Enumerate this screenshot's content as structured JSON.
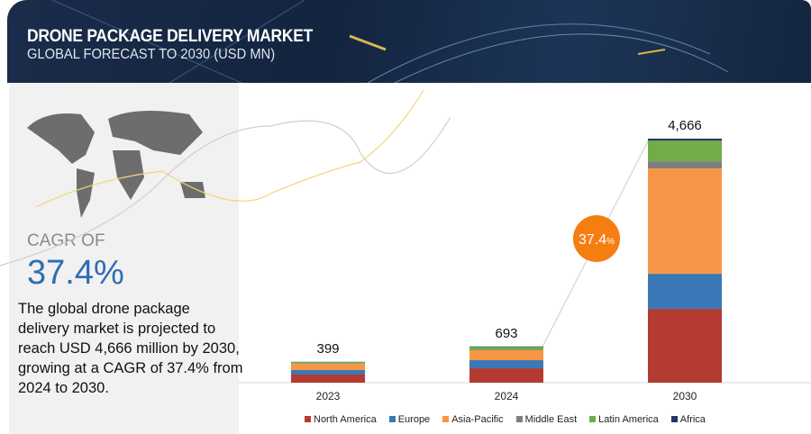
{
  "header": {
    "title": "DRONE PACKAGE DELIVERY MARKET",
    "subtitle": "GLOBAL FORECAST TO 2030 (USD MN)"
  },
  "left": {
    "cagr_label": "CAGR OF",
    "cagr_value": "37.4%",
    "description": "The global drone package delivery market is projected to reach  USD 4,666 million by 2030, growing at a CAGR of 37.4% from 2024 to 2030."
  },
  "chart_data": {
    "type": "bar",
    "stacked": true,
    "title": "Drone Package Delivery Market, Global Forecast to 2030 (USD MN)",
    "categories": [
      "2023",
      "2024",
      "2030"
    ],
    "totals": [
      "399",
      "693",
      "4,666"
    ],
    "total_values": [
      399,
      693,
      4666
    ],
    "cagr_badge": "37.4",
    "cagr_badge_unit": "%",
    "legend_position": "bottom",
    "series": [
      {
        "name": "North America",
        "color": "#b33b32",
        "values": [
          155,
          275,
          1411
        ]
      },
      {
        "name": "Europe",
        "color": "#3b78b7",
        "values": [
          86,
          155,
          671
        ]
      },
      {
        "name": "Asia-Pacific",
        "color": "#f79646",
        "values": [
          120,
          190,
          2013
        ]
      },
      {
        "name": "Middle East",
        "color": "#7f7f7f",
        "values": [
          5,
          8,
          138
        ]
      },
      {
        "name": "Latin America",
        "color": "#70ad47",
        "values": [
          28,
          55,
          396
        ]
      },
      {
        "name": "Africa",
        "color": "#1f3864",
        "values": [
          5,
          10,
          37
        ]
      }
    ]
  }
}
